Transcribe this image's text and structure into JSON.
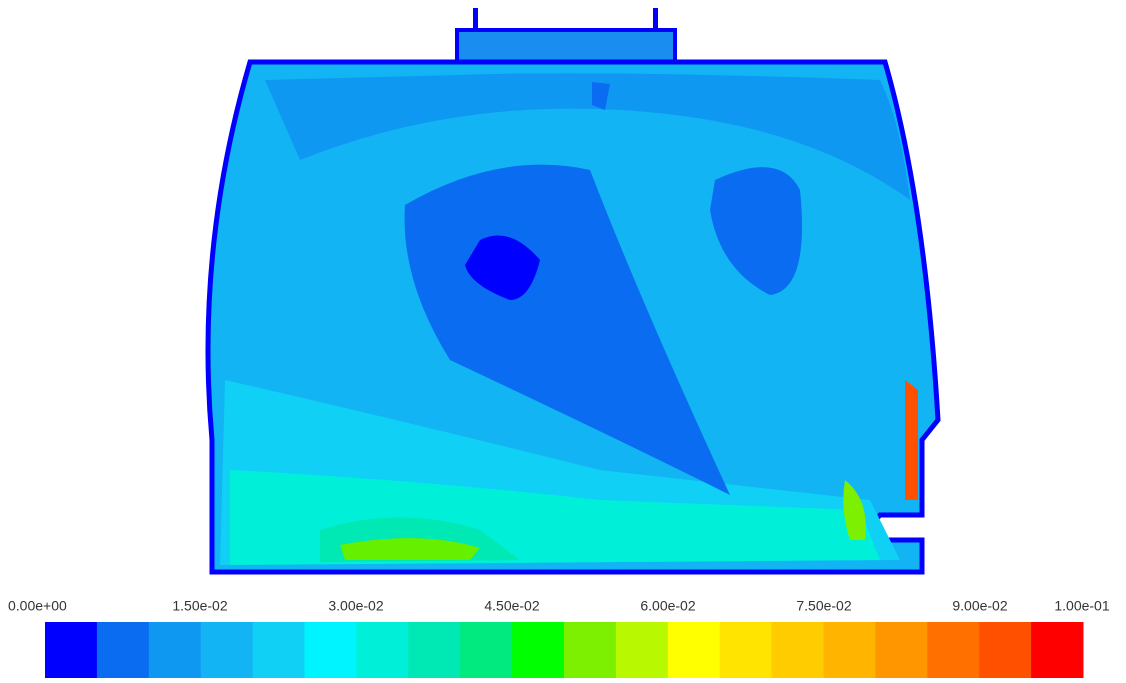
{
  "colorbar": {
    "labels": [
      "0.00e+00",
      "1.50e-02",
      "3.00e-02",
      "4.50e-02",
      "6.00e-02",
      "7.50e-02",
      "9.00e-02",
      "1.00e-01"
    ],
    "colors": [
      "#0000ff",
      "#0a6cf0",
      "#0f98f2",
      "#12b4f4",
      "#10d0f6",
      "#00f4ff",
      "#00efd8",
      "#00e8b4",
      "#00ea80",
      "#00ff00",
      "#7cf000",
      "#b8f800",
      "#ffff00",
      "#ffe400",
      "#ffcc00",
      "#ffb400",
      "#ff9600",
      "#ff7000",
      "#ff5000",
      "#ff0000"
    ]
  }
}
